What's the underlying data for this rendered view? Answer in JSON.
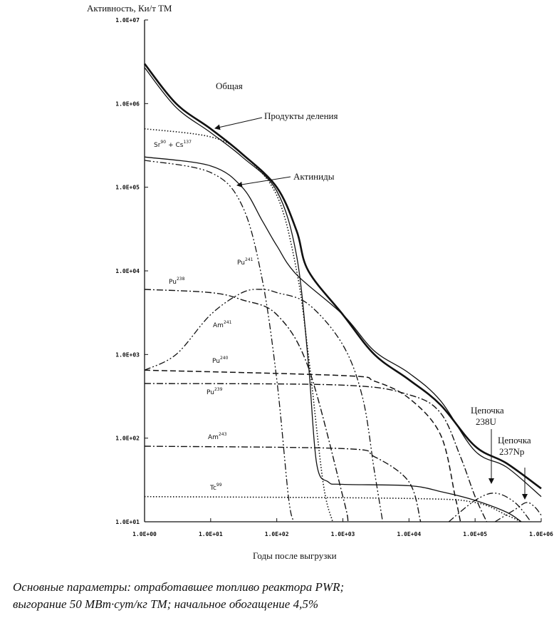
{
  "chart_data": {
    "type": "line",
    "ylabel": "Активность, Ки/т ТМ",
    "xlabel": "Годы после выгрузки",
    "x_scale": "log",
    "y_scale": "log",
    "xlim": [
      1,
      1000000
    ],
    "ylim": [
      10,
      10000000
    ],
    "x_ticks": [
      "1.0E+00",
      "1.0E+01",
      "1.0E+02",
      "1.0E+03",
      "1.0E+04",
      "1.0E+05",
      "1.0E+06"
    ],
    "y_ticks": [
      "1.0E+01",
      "1.0E+02",
      "1.0E+03",
      "1.0E+04",
      "1.0E+05",
      "1.0E+06",
      "1.0E+07"
    ],
    "series": [
      {
        "name": "Общая",
        "style": "solid-thick",
        "points": [
          [
            1,
            3000000
          ],
          [
            3,
            1000000
          ],
          [
            10,
            500000
          ],
          [
            30,
            250000
          ],
          [
            100,
            100000
          ],
          [
            200,
            30000
          ],
          [
            300,
            10000
          ],
          [
            1000,
            3000
          ],
          [
            3000,
            1000
          ],
          [
            10000,
            500
          ],
          [
            30000,
            250
          ],
          [
            100000,
            80
          ],
          [
            300000,
            50
          ],
          [
            1000000,
            25
          ]
        ]
      },
      {
        "name": "Продукты деления",
        "style": "solid",
        "points": [
          [
            1,
            2700000
          ],
          [
            3,
            900000
          ],
          [
            10,
            450000
          ],
          [
            30,
            230000
          ],
          [
            100,
            90000
          ],
          [
            200,
            15000
          ],
          [
            300,
            800
          ],
          [
            400,
            50
          ],
          [
            600,
            30
          ],
          [
            1000,
            28
          ],
          [
            10000,
            27
          ],
          [
            30000,
            23
          ],
          [
            100000,
            18
          ],
          [
            300000,
            13
          ],
          [
            500000,
            10
          ]
        ]
      },
      {
        "name": "Sr90 + Cs137",
        "style": "dotted",
        "points": [
          [
            1,
            500000
          ],
          [
            10,
            400000
          ],
          [
            30,
            250000
          ],
          [
            100,
            80000
          ],
          [
            200,
            10000
          ],
          [
            300,
            1000
          ],
          [
            500,
            30
          ],
          [
            700,
            10
          ]
        ]
      },
      {
        "name": "Актиниды",
        "style": "solid",
        "points": [
          [
            1,
            230000
          ],
          [
            10,
            180000
          ],
          [
            30,
            100000
          ],
          [
            60,
            40000
          ],
          [
            100,
            20000
          ],
          [
            200,
            9000
          ],
          [
            1000,
            3000
          ],
          [
            3000,
            1100
          ],
          [
            10000,
            600
          ],
          [
            30000,
            280
          ],
          [
            100000,
            70
          ],
          [
            300000,
            45
          ],
          [
            1000000,
            20
          ]
        ]
      },
      {
        "name": "Pu241",
        "style": "dashdotdot",
        "points": [
          [
            1,
            210000
          ],
          [
            10,
            150000
          ],
          [
            30,
            60000
          ],
          [
            60,
            8000
          ],
          [
            100,
            500
          ],
          [
            150,
            20
          ],
          [
            180,
            10
          ]
        ]
      },
      {
        "name": "Pu238",
        "style": "dashdot",
        "points": [
          [
            1,
            6000
          ],
          [
            10,
            5500
          ],
          [
            30,
            4500
          ],
          [
            100,
            3000
          ],
          [
            300,
            700
          ],
          [
            1000,
            20
          ],
          [
            1200,
            10
          ]
        ]
      },
      {
        "name": "Am241",
        "style": "dashdotdot",
        "points": [
          [
            1,
            650
          ],
          [
            3,
            1000
          ],
          [
            10,
            3000
          ],
          [
            30,
            5500
          ],
          [
            60,
            6000
          ],
          [
            100,
            5500
          ],
          [
            300,
            4000
          ],
          [
            1000,
            1300
          ],
          [
            2000,
            300
          ],
          [
            3000,
            40
          ],
          [
            4000,
            10
          ]
        ]
      },
      {
        "name": "Pu240",
        "style": "dashed",
        "points": [
          [
            1,
            650
          ],
          [
            1000,
            560
          ],
          [
            3000,
            480
          ],
          [
            10000,
            300
          ],
          [
            30000,
            110
          ],
          [
            50000,
            20
          ],
          [
            60000,
            10
          ]
        ]
      },
      {
        "name": "Pu239",
        "style": "dashdot",
        "points": [
          [
            1,
            450
          ],
          [
            1000,
            430
          ],
          [
            10000,
            330
          ],
          [
            30000,
            200
          ],
          [
            60000,
            60
          ],
          [
            100000,
            20
          ],
          [
            150000,
            10
          ]
        ]
      },
      {
        "name": "Am243",
        "style": "dashdot",
        "points": [
          [
            1,
            80
          ],
          [
            1000,
            75
          ],
          [
            3000,
            60
          ],
          [
            10000,
            30
          ],
          [
            15000,
            10
          ]
        ]
      },
      {
        "name": "Tc99",
        "style": "dotted",
        "points": [
          [
            1,
            20
          ],
          [
            10000,
            19
          ],
          [
            100000,
            17
          ],
          [
            300000,
            12
          ],
          [
            500000,
            10
          ]
        ]
      },
      {
        "name": "Цепочка 238U",
        "style": "dashdotdot",
        "points": [
          [
            40000,
            10
          ],
          [
            100000,
            18
          ],
          [
            200000,
            22
          ],
          [
            400000,
            17
          ],
          [
            700000,
            10
          ]
        ]
      },
      {
        "name": "Цепочка 237Np",
        "style": "dashdotdot",
        "points": [
          [
            200000,
            10
          ],
          [
            400000,
            14
          ],
          [
            600000,
            17
          ],
          [
            800000,
            15
          ],
          [
            1000000,
            12
          ]
        ]
      }
    ],
    "annotations": {
      "total": "Общая",
      "fission": "Продукты деления",
      "srcs_base": "Sr",
      "srcs_sup1": "90",
      "srcs_mid": "+ Cs",
      "srcs_sup2": "137",
      "actinides": "Актиниды",
      "pu_base": "Pu",
      "am_base": "Am",
      "tc_base": "Tc",
      "sup_241": "241",
      "sup_238": "238",
      "sup_240": "240",
      "sup_239": "239",
      "sup_243": "243",
      "sup_99": "99",
      "chain_label": "Цепочка",
      "chain_238u": "238U",
      "chain_237np": "237Np"
    }
  },
  "caption": {
    "line1": "Основные параметры: отработавшее топливо реактора PWR;",
    "line2": "выгорание 50 МВт·сут/кг ТМ; начальное обогащение 4,5%"
  }
}
